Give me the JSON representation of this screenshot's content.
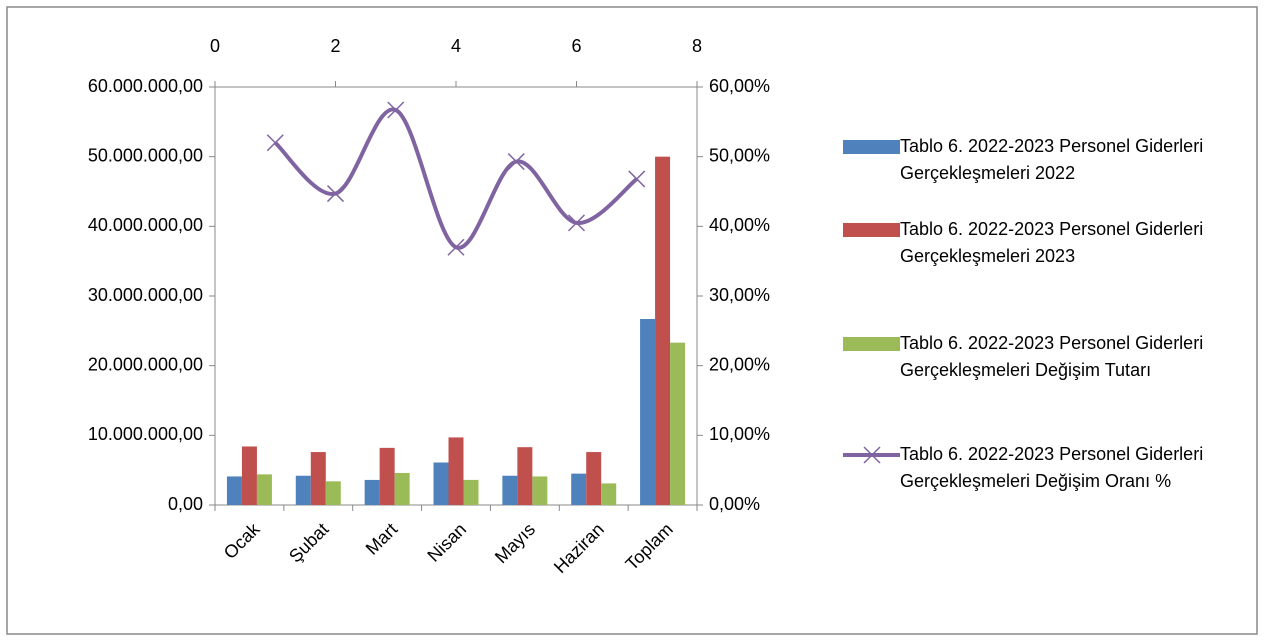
{
  "chart_data": {
    "type": "bar",
    "categories": [
      "Ocak",
      "Şubat",
      "Mart",
      "Nisan",
      "Mayıs",
      "Haziran",
      "Toplam"
    ],
    "series": [
      {
        "name": "Tablo 6. 2022-2023 Personel Giderleri Gerçekleşmeleri 2022",
        "color": "#4f81bd",
        "values": [
          4100000,
          4200000,
          3600000,
          6100000,
          4200000,
          4500000,
          26700000
        ]
      },
      {
        "name": "Tablo 6. 2022-2023 Personel Giderleri Gerçekleşmeleri 2023",
        "color": "#c0504d",
        "values": [
          8400000,
          7600000,
          8200000,
          9700000,
          8300000,
          7600000,
          50000000
        ]
      },
      {
        "name": "Tablo 6. 2022-2023 Personel Giderleri Gerçekleşmeleri Değişim Tutarı",
        "color": "#9bbb59",
        "values": [
          4400000,
          3400000,
          4600000,
          3600000,
          4100000,
          3100000,
          23300000
        ]
      },
      {
        "name": "Tablo 6. 2022-2023 Personel Giderleri Gerçekleşmeleri Değişim Oranı %",
        "color": "#8064a2",
        "type": "line",
        "axis": "y2",
        "x": [
          1,
          2,
          3,
          4,
          5,
          6,
          7
        ],
        "values": [
          52,
          44.7,
          56.7,
          37,
          49.3,
          40.5,
          46.8
        ]
      }
    ],
    "ylim": [
      0,
      60000000
    ],
    "yticks": [
      {
        "value": 0,
        "label": "0,00"
      },
      {
        "value": 10000000,
        "label": "10.000.000,00"
      },
      {
        "value": 20000000,
        "label": "20.000.000,00"
      },
      {
        "value": 30000000,
        "label": "30.000.000,00"
      },
      {
        "value": 40000000,
        "label": "40.000.000,00"
      },
      {
        "value": 50000000,
        "label": "50.000.000,00"
      },
      {
        "value": 60000000,
        "label": "60.000.000,00"
      }
    ],
    "y2lim": [
      0,
      60
    ],
    "y2ticks": [
      {
        "value": 0,
        "label": "0,00%"
      },
      {
        "value": 10,
        "label": "10,00%"
      },
      {
        "value": 20,
        "label": "20,00%"
      },
      {
        "value": 30,
        "label": "30,00%"
      },
      {
        "value": 40,
        "label": "40,00%"
      },
      {
        "value": 50,
        "label": "50,00%"
      },
      {
        "value": 60,
        "label": "60,00%"
      }
    ],
    "xlim": [
      0,
      8
    ],
    "xticks": [
      0,
      2,
      4,
      6,
      8
    ],
    "legend": "right"
  }
}
